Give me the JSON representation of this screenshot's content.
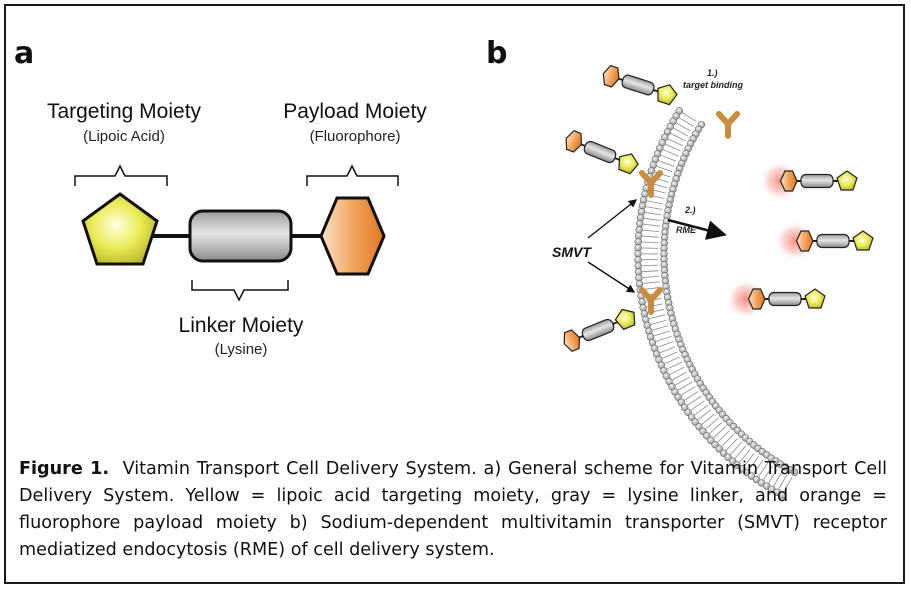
{
  "panel_a": {
    "letter": "a",
    "targeting": {
      "title": "Targeting Moiety",
      "subtitle": "(Lipoic Acid)"
    },
    "payload": {
      "title": "Payload Moiety",
      "subtitle": "(Fluorophore)"
    },
    "linker": {
      "title": "Linker Moiety",
      "subtitle": "(Lysine)"
    }
  },
  "panel_b": {
    "letter": "b",
    "step1_number": "1.)",
    "step1_text": "target binding",
    "step2_number": "2.)",
    "step2_text": "RME",
    "receptor_label": "SMVT"
  },
  "caption": {
    "label": "Figure 1.",
    "text": "Vitamin Transport Cell Delivery System. a) General scheme for Vitamin Transport Cell Delivery System. Yellow = lipoic acid targeting moiety, gray = lysine linker, and orange = fluorophore payload moiety b) Sodium-dependent multivitamin transporter (SMVT) receptor mediatized endocytosis (RME) of cell delivery system."
  },
  "colors": {
    "targeting_yellow": "#e3e34a",
    "linker_gray": "#a8a8a8",
    "payload_orange": "#ec8a3a",
    "receptor_tan": "#c98d3e",
    "membrane_gray": "#b5b5b5",
    "glow_red": "#f06a5a"
  }
}
